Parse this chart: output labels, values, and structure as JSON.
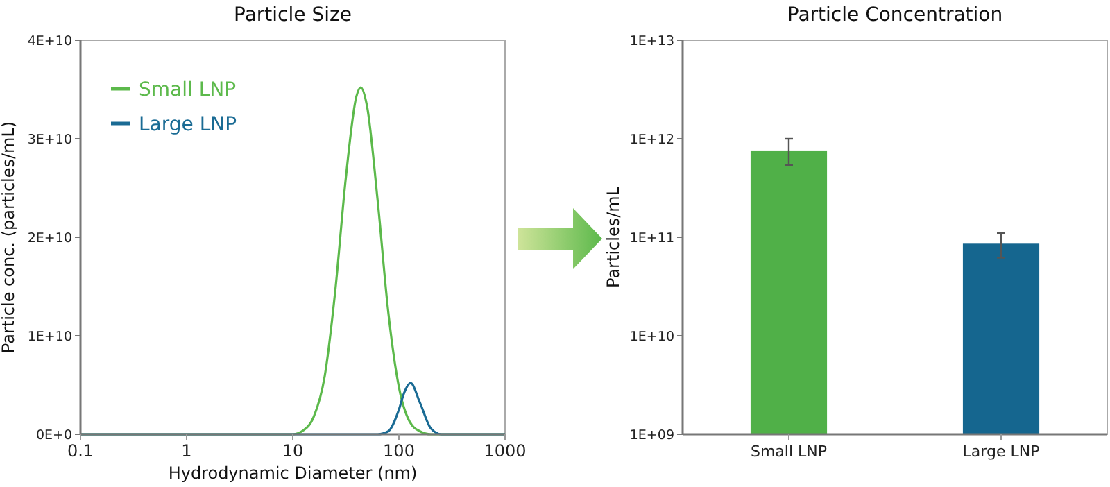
{
  "chart_data": [
    {
      "type": "line",
      "title": "Particle Size",
      "xlabel": "Hydrodynamic Diameter (nm)",
      "ylabel": "Particle conc. (particles/mL)",
      "log": "x",
      "xlim": [
        0.1,
        1000
      ],
      "xticks": [
        0.1,
        1,
        10,
        100,
        1000
      ],
      "ylim": [
        0,
        40000000000.0
      ],
      "yticks": [
        {
          "value": 0,
          "label": "0E+0"
        },
        {
          "value": 10000000000.0,
          "label": "1E+10"
        },
        {
          "value": 20000000000.0,
          "label": "2E+10"
        },
        {
          "value": 30000000000.0,
          "label": "3E+10"
        },
        {
          "value": 40000000000.0,
          "label": "4E+10"
        }
      ],
      "legend": "top left",
      "grid": false,
      "series": [
        {
          "name": "Small LNP",
          "color": "#5cb94b",
          "x": [
            0.1,
            7.94,
            10,
            12.6,
            15.8,
            20,
            25.1,
            31.6,
            39.8,
            43.7,
            50.1,
            63.1,
            79.4,
            100,
            126,
            158,
            200,
            251,
            1000
          ],
          "values": [
            0,
            0,
            0,
            400000000.0,
            1800000000.0,
            5900000000.0,
            14500000000.0,
            26000000000.0,
            34300000000.0,
            35200000000.0,
            33300000000.0,
            23700000000.0,
            12400000000.0,
            4800000000.0,
            1300000000.0,
            300000000.0,
            0,
            0,
            0
          ]
        },
        {
          "name": "Large LNP",
          "color": "#1a6b94",
          "x": [
            0.1,
            50,
            63.1,
            79.4,
            100,
            112,
            129,
            158,
            200,
            251,
            316,
            1000
          ],
          "values": [
            0,
            0,
            0,
            300000000.0,
            2500000000.0,
            4200000000.0,
            5200000000.0,
            3200000000.0,
            600000000.0,
            0,
            0,
            0
          ]
        }
      ]
    },
    {
      "type": "bar",
      "title": "Particle Concentration",
      "ylabel": "Particles/mL",
      "log": true,
      "categories": [
        "Small LNP",
        "Large LNP"
      ],
      "ylim": [
        1000000000.0,
        10000000000000.0
      ],
      "yticks": [
        {
          "value": 1000000000.0,
          "label": "1E+09"
        },
        {
          "value": 10000000000.0,
          "label": "1E+10"
        },
        {
          "value": 100000000000.0,
          "label": "1E+11"
        },
        {
          "value": 1000000000000.0,
          "label": "1E+12"
        },
        {
          "value": 10000000000000.0,
          "label": "1E+13"
        }
      ],
      "grid": false,
      "values": [
        760000000000.0,
        86000000000.0
      ],
      "colors": [
        "#50b048",
        "#15668f"
      ],
      "errors": [
        [
          540000000000.0,
          1000000000000.0
        ],
        [
          62000000000.0,
          110000000000.0
        ]
      ]
    }
  ]
}
